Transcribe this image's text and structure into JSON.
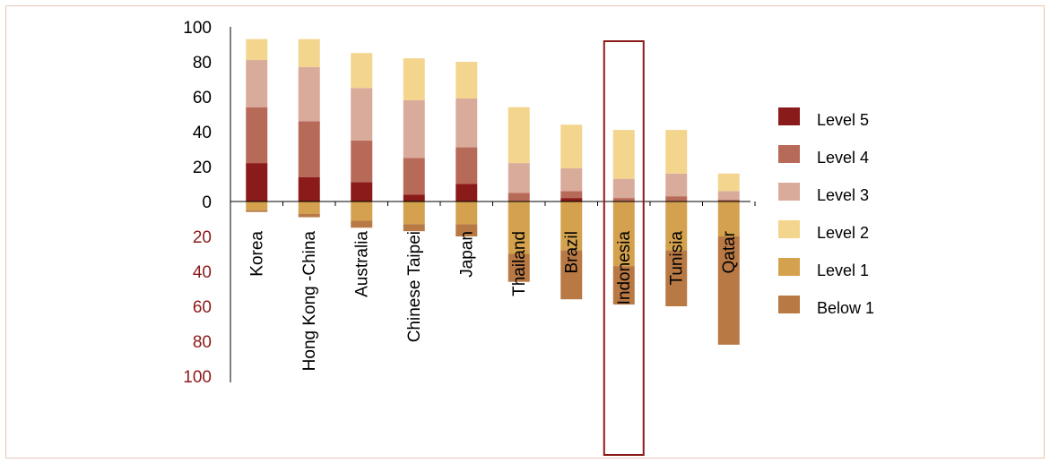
{
  "chart_data": {
    "type": "bar",
    "stacked": true,
    "diverging": true,
    "categories": [
      "Korea",
      "Hong Kong -China",
      "Australia",
      "Chinese Taipei",
      "Japan",
      "Thailand",
      "Brazil",
      "Indonesia",
      "Tunisia",
      "Qatar"
    ],
    "highlighted_category": "Indonesia",
    "yticks_positive": [
      "100",
      "80",
      "60",
      "40",
      "20",
      "0"
    ],
    "yticks_negative": [
      "20",
      "40",
      "60",
      "80",
      "100"
    ],
    "ylim": [
      -100,
      100
    ],
    "legend_position": "right",
    "series": [
      {
        "name": "Level 5",
        "color": "#8b1a1a",
        "values": [
          22,
          14,
          11,
          4,
          10,
          0,
          2,
          0,
          0,
          0
        ]
      },
      {
        "name": "Level 4",
        "color": "#b86a58",
        "values": [
          32,
          32,
          24,
          21,
          21,
          5,
          4,
          2,
          3,
          1
        ]
      },
      {
        "name": "Level 3",
        "color": "#d9ab9b",
        "values": [
          27,
          31,
          30,
          33,
          28,
          17,
          13,
          11,
          13,
          5
        ]
      },
      {
        "name": "Level 2",
        "color": "#f3d58e",
        "values": [
          12,
          16,
          20,
          24,
          21,
          32,
          25,
          28,
          25,
          10
        ]
      },
      {
        "name": "Level 1",
        "color": "#d4a24e",
        "values": [
          -5,
          -7,
          -11,
          -13,
          -13,
          -30,
          -28,
          -37,
          -28,
          -20
        ]
      },
      {
        "name": "Below 1",
        "color": "#b97945",
        "values": [
          -1,
          -2,
          -4,
          -4,
          -7,
          -16,
          -28,
          -22,
          -32,
          -62
        ]
      }
    ]
  }
}
